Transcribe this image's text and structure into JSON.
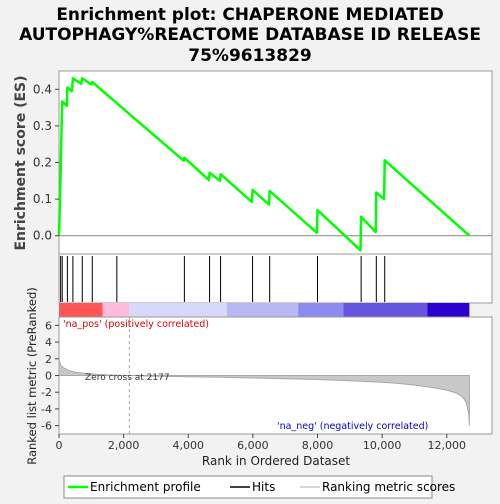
{
  "chart_data": {
    "type": "line",
    "title_lines": [
      "Enrichment plot: CHAPERONE MEDIATED",
      "AUTOPHAGY%REACTOME DATABASE ID RELEASE",
      "75%9613829"
    ],
    "es_panel": {
      "ylabel": "Enrichment score (ES)",
      "ylim": [
        -0.05,
        0.45
      ],
      "yticks": [
        0.0,
        0.1,
        0.2,
        0.3,
        0.4
      ],
      "ytick_labels": [
        "0.0",
        "0.1",
        "0.2",
        "0.3",
        "0.4"
      ],
      "series": [
        {
          "name": "Enrichment profile",
          "color": "#00ff00",
          "x": [
            0,
            50,
            70,
            100,
            240,
            260,
            400,
            430,
            690,
            720,
            1000,
            1030,
            1790,
            3860,
            3880,
            4640,
            4660,
            4980,
            5000,
            5970,
            5990,
            6500,
            6520,
            7980,
            8000,
            9330,
            9350,
            9800,
            9820,
            10060,
            10080,
            12700
          ],
          "y": [
            0.0,
            0.17,
            0.26,
            0.367,
            0.355,
            0.405,
            0.395,
            0.43,
            0.415,
            0.43,
            0.413,
            0.42,
            0.362,
            0.205,
            0.213,
            0.152,
            0.172,
            0.15,
            0.168,
            0.092,
            0.125,
            0.085,
            0.122,
            0.008,
            0.07,
            -0.04,
            0.052,
            0.01,
            0.118,
            0.1,
            0.206,
            0.0
          ]
        }
      ]
    },
    "hits": {
      "name": "Hits",
      "positions": [
        50,
        100,
        260,
        430,
        720,
        1030,
        1790,
        3880,
        4660,
        5000,
        5990,
        6520,
        8000,
        9350,
        9820,
        10080
      ]
    },
    "ranked_panel": {
      "ylabel": "Ranked list metric (PreRanked)",
      "xlabel": "Rank in Ordered Dataset",
      "ylim": [
        -7,
        7
      ],
      "yticks": [
        -6,
        -4,
        -2,
        0,
        2,
        4,
        6
      ],
      "ytick_labels": [
        "-6",
        "-4",
        "-2",
        "0",
        "2",
        "4",
        "6"
      ],
      "xlim": [
        0,
        13400
      ],
      "xticks": [
        0,
        2000,
        4000,
        6000,
        8000,
        10000,
        12000
      ],
      "xtick_labels": [
        "0",
        "2,000",
        "4,000",
        "6,000",
        "8,000",
        "10,000",
        "12,000"
      ],
      "zero_cross_label": "Zero cross at 2177",
      "zero_cross": 2177,
      "pos_label": "'na_pos' (positively correlated)",
      "neg_label": "'na_neg' (negatively correlated)",
      "metric_curve": {
        "name": "Ranking metric scores",
        "x": [
          0,
          20,
          60,
          150,
          300,
          500,
          800,
          1200,
          1700,
          2177,
          3000,
          4000,
          5000,
          6000,
          7000,
          8000,
          9000,
          10000,
          10500,
          11000,
          11500,
          12000,
          12300,
          12500,
          12600,
          12680,
          12700
        ],
        "y": [
          2.0,
          1.6,
          1.2,
          0.9,
          0.6,
          0.4,
          0.25,
          0.12,
          0.05,
          0.0,
          -0.08,
          -0.15,
          -0.22,
          -0.3,
          -0.38,
          -0.48,
          -0.62,
          -0.8,
          -0.95,
          -1.15,
          -1.4,
          -1.75,
          -2.1,
          -2.6,
          -3.2,
          -4.5,
          -6.0
        ]
      }
    },
    "color_bar": {
      "segments": [
        {
          "from": 0,
          "to": 1350,
          "color": "#ff5555"
        },
        {
          "from": 1350,
          "to": 2177,
          "color": "#ffbbdd"
        },
        {
          "from": 2177,
          "to": 5200,
          "color": "#d8d8f8"
        },
        {
          "from": 5200,
          "to": 7400,
          "color": "#b8b8f4"
        },
        {
          "from": 7400,
          "to": 8800,
          "color": "#8c8cee"
        },
        {
          "from": 8800,
          "to": 11400,
          "color": "#6655e0"
        },
        {
          "from": 11400,
          "to": 12700,
          "color": "#2a00cc"
        }
      ]
    },
    "legend": {
      "entries": [
        {
          "label": "Enrichment profile",
          "color": "#00ff00",
          "style": "line"
        },
        {
          "label": "Hits",
          "color": "#000000",
          "style": "line"
        },
        {
          "label": "Ranking metric scores",
          "color": "#c8c8c8",
          "style": "line"
        }
      ],
      "placement": "bottom"
    }
  }
}
